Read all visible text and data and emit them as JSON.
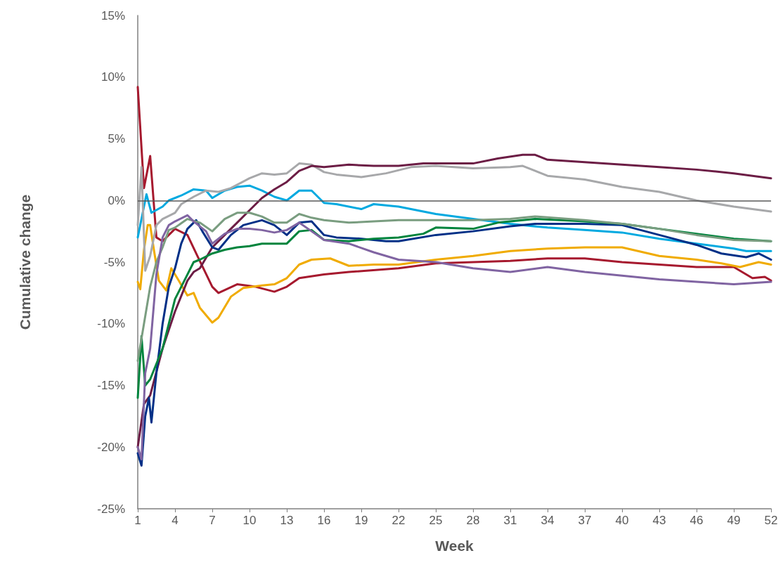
{
  "chart_data": {
    "type": "line",
    "xlabel": "Week",
    "ylabel": "Cumulative change",
    "xlim": [
      1,
      52
    ],
    "xticks": [
      1,
      4,
      7,
      10,
      13,
      16,
      19,
      22,
      25,
      28,
      31,
      34,
      37,
      40,
      43,
      46,
      49,
      52
    ],
    "ylim": [
      -25,
      15
    ],
    "yticks": [
      {
        "value": -25,
        "label": "-25%"
      },
      {
        "value": -20,
        "label": "-20%"
      },
      {
        "value": -15,
        "label": "-15%"
      },
      {
        "value": -10,
        "label": "-10%"
      },
      {
        "value": -5,
        "label": "-5%"
      },
      {
        "value": 0,
        "label": "0%"
      },
      {
        "value": 5,
        "label": "5%"
      },
      {
        "value": 10,
        "label": "10%"
      },
      {
        "value": 15,
        "label": "15%"
      }
    ],
    "grid": false,
    "marker": "none",
    "line_style": "solid",
    "ref_lines": [
      {
        "axis": "y",
        "value": 0,
        "color": "#595959"
      }
    ],
    "series": [
      {
        "color": "#a6192e",
        "x": [
          1,
          1.5,
          2,
          2.5,
          3,
          4,
          5,
          5.8,
          7,
          7.5,
          9,
          10.5,
          12,
          13,
          14,
          16,
          18,
          22,
          25,
          28,
          31,
          34,
          37,
          40,
          43,
          46,
          49,
          50.5,
          51.5,
          52
        ],
        "values": [
          9.2,
          1,
          3.6,
          -3,
          -3.3,
          -2.3,
          -2.8,
          -4.5,
          -7,
          -7.5,
          -6.8,
          -7,
          -7.4,
          -7,
          -6.3,
          -6,
          -5.8,
          -5.5,
          -5.1,
          -5,
          -4.9,
          -4.7,
          -4.7,
          -5,
          -5.2,
          -5.4,
          -5.4,
          -6.3,
          -6.2,
          -6.5
        ]
      },
      {
        "color": "#f0ab00",
        "x": [
          1,
          1.2,
          1.5,
          1.8,
          2,
          2.3,
          2.7,
          3.3,
          3.7,
          4.3,
          5,
          5.5,
          6,
          7,
          7.5,
          8.5,
          9.5,
          11,
          12,
          13,
          14,
          15,
          16.5,
          18,
          20,
          22,
          25,
          28,
          31,
          34,
          37,
          40,
          43,
          46,
          48,
          49.5,
          51,
          52
        ],
        "values": [
          -6.6,
          -7.2,
          -4,
          -2,
          -2,
          -4,
          -6.5,
          -7.3,
          -5.5,
          -6.5,
          -7.7,
          -7.5,
          -8.7,
          -9.9,
          -9.5,
          -7.8,
          -7.1,
          -6.9,
          -6.8,
          -6.3,
          -5.2,
          -4.8,
          -4.7,
          -5.3,
          -5.2,
          -5.2,
          -4.8,
          -4.5,
          -4.1,
          -3.9,
          -3.8,
          -3.8,
          -4.5,
          -4.8,
          -5.1,
          -5.4,
          -5,
          -5.2
        ]
      },
      {
        "color": "#00a9e0",
        "x": [
          1,
          1.4,
          1.7,
          2.1,
          3,
          3.5,
          4.5,
          5.5,
          6.5,
          7,
          8,
          9,
          10,
          11,
          12,
          13,
          14,
          15,
          16,
          17,
          19,
          20,
          22,
          25,
          28,
          31,
          34,
          37,
          40,
          43,
          46,
          49,
          50,
          52
        ],
        "values": [
          -3,
          -1,
          0.5,
          -1,
          -0.5,
          0,
          0.4,
          0.9,
          0.8,
          0.2,
          0.8,
          1.1,
          1.2,
          0.8,
          0.3,
          0,
          0.8,
          0.8,
          -0.2,
          -0.3,
          -0.7,
          -0.3,
          -0.5,
          -1.1,
          -1.5,
          -1.9,
          -2.2,
          -2.4,
          -2.6,
          -3.1,
          -3.5,
          -3.9,
          -4.1,
          -4.1
        ]
      },
      {
        "color": "#a7a8aa",
        "x": [
          1,
          1.3,
          1.6,
          2,
          2.5,
          3,
          4,
          4.5,
          5.5,
          6.5,
          7.5,
          8.5,
          10,
          11,
          12,
          13,
          14,
          15,
          16,
          17,
          19,
          21,
          23,
          25,
          28,
          31,
          32,
          34,
          37,
          40,
          43,
          46,
          49,
          52
        ],
        "values": [
          -2,
          2.7,
          -5.7,
          -4.5,
          -2,
          -1.5,
          -1,
          -0.3,
          0.3,
          0.8,
          0.7,
          1,
          1.8,
          2.2,
          2.1,
          2.2,
          3,
          2.9,
          2.3,
          2.1,
          1.9,
          2.2,
          2.7,
          2.8,
          2.6,
          2.7,
          2.8,
          2,
          1.7,
          1.1,
          0.7,
          0,
          -0.5,
          -0.9
        ]
      },
      {
        "color": "#6c1d45",
        "x": [
          1,
          1.5,
          2,
          3,
          4,
          5,
          5.5,
          6,
          7,
          8,
          9,
          10,
          11,
          12,
          13,
          14,
          15,
          16,
          18,
          20,
          22,
          24,
          26,
          28,
          30,
          32,
          33,
          34,
          37,
          40,
          43,
          46,
          49,
          52
        ],
        "values": [
          -20,
          -16.5,
          -15.8,
          -12,
          -9,
          -6.5,
          -5.8,
          -5.5,
          -3.8,
          -2.8,
          -1.8,
          -0.8,
          0.2,
          0.9,
          1.5,
          2.4,
          2.8,
          2.7,
          2.9,
          2.8,
          2.8,
          3,
          3,
          3,
          3.4,
          3.7,
          3.7,
          3.3,
          3.1,
          2.9,
          2.7,
          2.5,
          2.2,
          1.8
        ]
      },
      {
        "color": "#003087",
        "x": [
          1,
          1.3,
          1.6,
          1.9,
          2.1,
          2.5,
          3,
          3.5,
          4,
          4.5,
          5,
          5.7,
          6.2,
          7,
          7.5,
          8.5,
          9.5,
          11,
          12,
          13,
          14,
          15,
          16,
          17,
          19,
          21,
          22,
          25,
          28,
          31,
          33,
          37,
          40,
          43,
          46,
          48,
          50,
          51,
          52
        ],
        "values": [
          -20.5,
          -21.5,
          -17.5,
          -16,
          -18,
          -14,
          -10,
          -7,
          -5.5,
          -3.5,
          -2.3,
          -1.6,
          -2.5,
          -3.8,
          -4,
          -2.8,
          -2,
          -1.6,
          -2,
          -2.8,
          -1.8,
          -1.7,
          -2.8,
          -3,
          -3.1,
          -3.3,
          -3.3,
          -2.8,
          -2.5,
          -2.1,
          -1.9,
          -1.9,
          -2,
          -2.8,
          -3.6,
          -4.3,
          -4.6,
          -4.3,
          -4.8
        ]
      },
      {
        "color": "#00843d",
        "x": [
          1,
          1.3,
          1.6,
          2,
          3,
          4,
          5,
          5.5,
          6,
          7,
          8,
          9,
          10,
          11,
          13,
          14,
          15,
          16,
          18,
          20,
          22,
          24,
          25,
          28,
          30,
          33,
          37,
          40,
          43,
          46,
          49,
          52
        ],
        "values": [
          -16,
          -11,
          -15,
          -14.5,
          -12,
          -8,
          -6,
          -5,
          -4.8,
          -4.3,
          -4,
          -3.8,
          -3.7,
          -3.5,
          -3.5,
          -2.5,
          -2.4,
          -3.2,
          -3.3,
          -3.1,
          -3,
          -2.7,
          -2.2,
          -2.3,
          -1.8,
          -1.5,
          -1.7,
          -1.9,
          -2.3,
          -2.7,
          -3.1,
          -3.3
        ]
      },
      {
        "color": "#7a9d80",
        "x": [
          1,
          1.5,
          2,
          2.5,
          3,
          3.5,
          4,
          5,
          6,
          7,
          8,
          9,
          10,
          11,
          12,
          13,
          14,
          15,
          16,
          18,
          20,
          22,
          25,
          28,
          31,
          33,
          37,
          40,
          43,
          46,
          49,
          52
        ],
        "values": [
          -13,
          -10,
          -7,
          -5,
          -3.8,
          -2.4,
          -2.2,
          -1.5,
          -1.8,
          -2.5,
          -1.5,
          -1,
          -1,
          -1.3,
          -1.8,
          -1.8,
          -1.1,
          -1.4,
          -1.6,
          -1.8,
          -1.7,
          -1.6,
          -1.6,
          -1.6,
          -1.5,
          -1.3,
          -1.6,
          -1.9,
          -2.3,
          -2.8,
          -3.2,
          -3.3
        ]
      },
      {
        "color": "#8064a2",
        "x": [
          1,
          1.3,
          1.6,
          2,
          2.5,
          3,
          3.5,
          4,
          5,
          5.5,
          6.5,
          7,
          8,
          9,
          10,
          11,
          12,
          13,
          14,
          15,
          16,
          18,
          20,
          22,
          25,
          28,
          31,
          34,
          37,
          40,
          43,
          46,
          49,
          52
        ],
        "values": [
          -20,
          -21,
          -14,
          -12,
          -6,
          -3,
          -2,
          -1.7,
          -1.2,
          -1.7,
          -2.5,
          -3.5,
          -2.7,
          -2.3,
          -2.3,
          -2.4,
          -2.6,
          -2.4,
          -1.8,
          -2.5,
          -3.2,
          -3.5,
          -4.2,
          -4.8,
          -5,
          -5.5,
          -5.8,
          -5.4,
          -5.8,
          -6.1,
          -6.4,
          -6.6,
          -6.8,
          -6.6
        ]
      }
    ]
  }
}
